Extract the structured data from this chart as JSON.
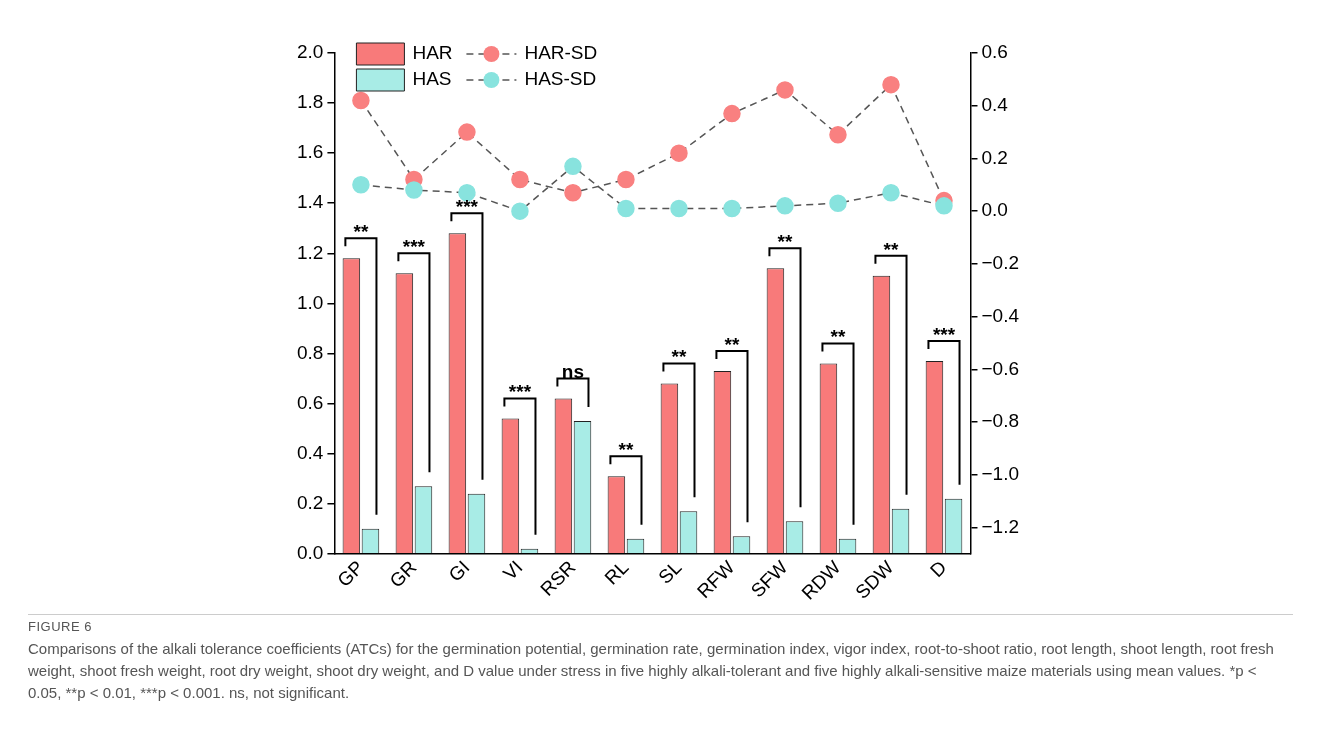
{
  "chart_data": {
    "type": "bar",
    "categories": [
      "GP",
      "GR",
      "GI",
      "VI",
      "RSR",
      "RL",
      "SL",
      "RFW",
      "SFW",
      "RDW",
      "SDW",
      "D"
    ],
    "series": [
      {
        "name": "HAR",
        "color": "#f87a7a",
        "values": [
          1.18,
          1.12,
          1.28,
          0.54,
          0.62,
          0.31,
          0.68,
          0.73,
          1.14,
          0.76,
          1.11,
          0.77
        ]
      },
      {
        "name": "HAS",
        "color": "#a8ece6",
        "values": [
          0.1,
          0.27,
          0.24,
          0.02,
          0.53,
          0.06,
          0.17,
          0.07,
          0.13,
          0.06,
          0.18,
          0.22
        ]
      },
      {
        "name": "HAR-SD",
        "type": "line",
        "axis": "y2",
        "color": "#f98080",
        "marker": "circle",
        "line_style": "dashed",
        "values": [
          0.42,
          0.12,
          0.3,
          0.12,
          0.07,
          0.12,
          0.22,
          0.37,
          0.46,
          0.29,
          0.48,
          0.04
        ]
      },
      {
        "name": "HAS-SD",
        "type": "line",
        "axis": "y2",
        "color": "#88e3de",
        "marker": "circle",
        "line_style": "dashed",
        "values": [
          0.1,
          0.08,
          0.07,
          0.0,
          0.17,
          0.01,
          0.01,
          0.01,
          0.02,
          0.03,
          0.07,
          0.02
        ]
      }
    ],
    "ylim": [
      0,
      2.0
    ],
    "yticks": [
      {
        "value": 0,
        "label": "0.0"
      },
      {
        "value": 0.2,
        "label": "0.2"
      },
      {
        "value": 0.4,
        "label": "0.4"
      },
      {
        "value": 0.6,
        "label": "0.6"
      },
      {
        "value": 0.8,
        "label": "0.8"
      },
      {
        "value": 1.0,
        "label": "1.0"
      },
      {
        "value": 1.2,
        "label": "1.2"
      },
      {
        "value": 1.4,
        "label": "1.4"
      },
      {
        "value": 1.6,
        "label": "1.6"
      },
      {
        "value": 1.8,
        "label": "1.8"
      },
      {
        "value": 2.0,
        "label": "2.0"
      }
    ],
    "y2lim": [
      -1.3,
      0.6
    ],
    "y2ticks": [
      {
        "value": -1.2,
        "label": "−1.2"
      },
      {
        "value": -1.0,
        "label": "−1.0"
      },
      {
        "value": -0.8,
        "label": "−0.8"
      },
      {
        "value": -0.6,
        "label": "−0.6"
      },
      {
        "value": -0.4,
        "label": "−0.4"
      },
      {
        "value": -0.2,
        "label": "−0.2"
      },
      {
        "value": 0,
        "label": "0.0"
      },
      {
        "value": 0.2,
        "label": "0.2"
      },
      {
        "value": 0.4,
        "label": "0.4"
      },
      {
        "value": 0.6,
        "label": "0.6"
      }
    ],
    "grid": false,
    "legend": "top left",
    "annotations": [
      "**",
      "***",
      "***",
      "***",
      "ns",
      "**",
      "**",
      "**",
      "**",
      "**",
      "**",
      "***",
      "FIGURE 6",
      "Comparisons of the alkali tolerance coefficients (ATCs) for the germination potential, germination rate, germination index, vigor index, root-to-shoot ratio, root length, shoot length, root fresh weight, shoot fresh weight, root dry weight, shoot dry weight, and D value under stress in five highly alkali-tolerant and five highly alkali-sensitive maize materials using mean values. *p < 0.05, **p < 0.01, ***p < 0.001. ns, not significant."
    ]
  }
}
